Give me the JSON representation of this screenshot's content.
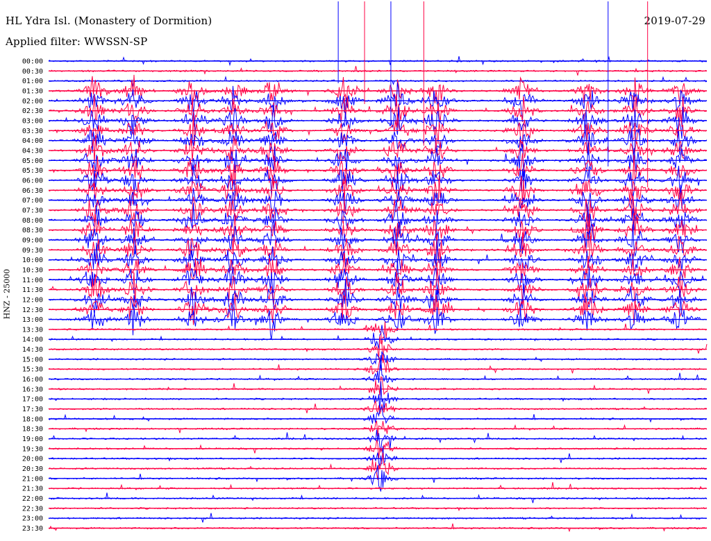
{
  "header": {
    "station_title": "HL Ydra Isl. (Monastery of Dormition)",
    "filter_text": "Applied filter: WWSSN-SP",
    "date": "2019-07-29"
  },
  "chart_data": {
    "type": "helicorder",
    "title": "HL Ydra Isl. (Monastery of Dormition)",
    "subtitle": "Applied filter: WWSSN-SP",
    "date": "2019-07-29",
    "ylabel": "HNZ - 25000",
    "row_labels": [
      "00:00",
      "00:30",
      "01:00",
      "01:30",
      "02:00",
      "02:30",
      "03:00",
      "03:30",
      "04:00",
      "04:30",
      "05:00",
      "05:30",
      "06:00",
      "06:30",
      "07:00",
      "07:30",
      "08:00",
      "08:30",
      "09:00",
      "09:30",
      "10:00",
      "10:30",
      "11:00",
      "11:30",
      "12:00",
      "12:30",
      "13:00",
      "13:30",
      "14:00",
      "14:30",
      "15:00",
      "15:30",
      "16:00",
      "16:30",
      "17:00",
      "17:30",
      "18:00",
      "18:30",
      "19:00",
      "19:30",
      "20:00",
      "20:30",
      "21:00",
      "21:30",
      "22:00",
      "22:30",
      "23:00",
      "23:30"
    ],
    "trace_colors": [
      "#0000ff",
      "#ff0044"
    ],
    "bursts_x_fraction": [
      0.07,
      0.13,
      0.22,
      0.28,
      0.34,
      0.45,
      0.53,
      0.59,
      0.72,
      0.82,
      0.89,
      0.96
    ],
    "burst_rows": [
      3,
      4,
      5,
      6,
      7,
      8,
      9,
      10,
      11,
      12,
      13,
      14,
      15,
      16,
      17,
      18,
      19,
      20,
      21,
      22,
      23,
      24,
      25,
      26
    ],
    "strong_event_x_fraction": 0.505,
    "strong_event_rows": [
      27,
      28,
      29,
      30,
      31,
      32,
      33,
      34,
      35,
      36,
      37,
      38,
      39,
      40,
      41,
      42
    ]
  }
}
